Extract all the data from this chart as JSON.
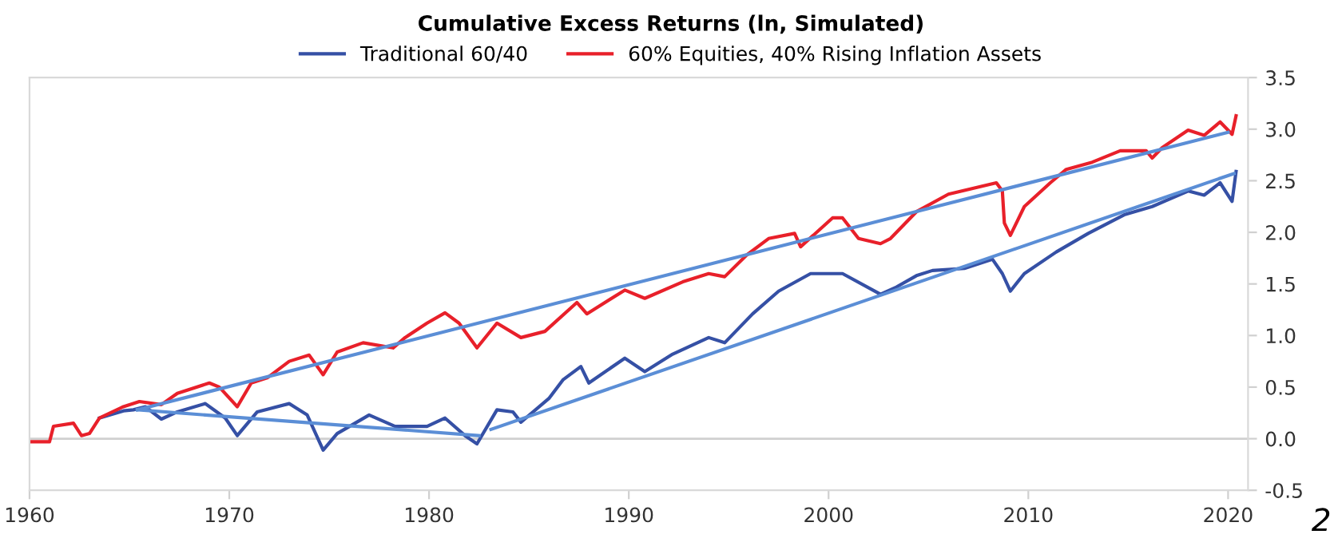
{
  "chart_data": {
    "type": "line",
    "title": "Cumulative Excess Returns (ln, Simulated)",
    "series": [
      {
        "name": "Traditional 60/40",
        "color": "#3550a5",
        "x": [
          1963.5,
          1964.7,
          1965.2,
          1965.8,
          1966.6,
          1967.4,
          1968.8,
          1969.8,
          1970.4,
          1971.4,
          1973,
          1973.9,
          1974.7,
          1975.4,
          1977,
          1978.3,
          1979.9,
          1980.8,
          1981.8,
          1982.4,
          1983.4,
          1984.2,
          1984.6,
          1986,
          1986.7,
          1987.6,
          1988,
          1989.8,
          1990.8,
          1992.2,
          1994,
          1994.8,
          1996.2,
          1997.5,
          1999.1,
          2000.7,
          2002.6,
          2003.4,
          2004.4,
          2005.2,
          2006.8,
          2008.2,
          2008.7,
          2009.1,
          2009.8,
          2011.4,
          2013,
          2014.8,
          2016.2,
          2018,
          2018.8,
          2019.6,
          2020.2,
          2020.4
        ],
        "values": [
          0.2,
          0.27,
          0.28,
          0.31,
          0.19,
          0.26,
          0.34,
          0.2,
          0.03,
          0.26,
          0.34,
          0.23,
          -0.11,
          0.05,
          0.23,
          0.12,
          0.12,
          0.2,
          0.03,
          -0.05,
          0.28,
          0.26,
          0.16,
          0.39,
          0.57,
          0.7,
          0.54,
          0.78,
          0.65,
          0.82,
          0.98,
          0.93,
          1.21,
          1.43,
          1.6,
          1.6,
          1.4,
          1.47,
          1.58,
          1.63,
          1.65,
          1.74,
          1.6,
          1.43,
          1.6,
          1.81,
          1.99,
          2.17,
          2.25,
          2.4,
          2.36,
          2.48,
          2.3,
          2.59
        ]
      },
      {
        "name": "60% Equities, 40% Rising Inflation Assets",
        "color": "#e8202a",
        "x": [
          1960,
          1961,
          1961.2,
          1962.2,
          1962.6,
          1963,
          1963.5,
          1964.7,
          1965.5,
          1966.6,
          1967.4,
          1969,
          1969.5,
          1970.4,
          1971.1,
          1971.9,
          1973,
          1974,
          1974.7,
          1975.4,
          1976.7,
          1978.2,
          1978.8,
          1979.9,
          1980.8,
          1981.5,
          1982.4,
          1983.4,
          1984.6,
          1985.8,
          1987.4,
          1987.9,
          1989.8,
          1990.8,
          1992.7,
          1994,
          1994.8,
          1995.9,
          1997,
          1998.3,
          1998.6,
          2000.2,
          2000.7,
          2001.5,
          2002.6,
          2003.1,
          2004.4,
          2006,
          2008.4,
          2008.7,
          2008.8,
          2009.1,
          2009.8,
          2011.1,
          2011.9,
          2013.2,
          2014.6,
          2015.9,
          2016.2,
          2016.7,
          2018,
          2018.8,
          2019.6,
          2020.2,
          2020.4
        ],
        "values": [
          -0.03,
          -0.03,
          0.12,
          0.15,
          0.03,
          0.05,
          0.2,
          0.31,
          0.36,
          0.33,
          0.44,
          0.54,
          0.5,
          0.31,
          0.54,
          0.59,
          0.75,
          0.81,
          0.62,
          0.84,
          0.93,
          0.88,
          0.98,
          1.12,
          1.22,
          1.12,
          0.88,
          1.12,
          0.98,
          1.04,
          1.32,
          1.21,
          1.44,
          1.36,
          1.52,
          1.6,
          1.57,
          1.78,
          1.94,
          1.99,
          1.86,
          2.14,
          2.14,
          1.94,
          1.89,
          1.94,
          2.2,
          2.37,
          2.48,
          2.4,
          2.09,
          1.97,
          2.25,
          2.48,
          2.61,
          2.68,
          2.79,
          2.79,
          2.72,
          2.82,
          2.99,
          2.94,
          3.07,
          2.95,
          3.13
        ]
      },
      {
        "color": "#5b8ed6",
        "x": [
          1965.4,
          2020
        ],
        "values": [
          0.28,
          2.97
        ]
      },
      {
        "color": "#5b8ed6",
        "x": [
          1965.4,
          1982.5
        ],
        "values": [
          0.28,
          0.03
        ]
      },
      {
        "color": "#5b8ed6",
        "x": [
          1983.1,
          2020.3
        ],
        "values": [
          0.09,
          2.57
        ]
      }
    ],
    "xlim": [
      1960,
      2021
    ],
    "xticks": [
      1960,
      1970,
      1980,
      1990,
      2000,
      2010,
      2020
    ],
    "ylim": [
      -0.5,
      3.5
    ],
    "yticks": [
      {
        "value": -0.5,
        "label": "-0.5"
      },
      {
        "value": 0,
        "label": "0.0"
      },
      0.5,
      {
        "value": 1,
        "label": "1.0"
      },
      1.5,
      {
        "value": 2,
        "label": "2.0"
      },
      2.5,
      {
        "value": 3,
        "label": "3.0"
      },
      3.5
    ],
    "ref_lines": [
      {
        "axis": "y",
        "value": 0,
        "color": "#d0d0d0"
      }
    ],
    "annotations": [
      "2"
    ],
    "grid": false,
    "legend": "top",
    "line_style": "solid",
    "marker": "none"
  }
}
